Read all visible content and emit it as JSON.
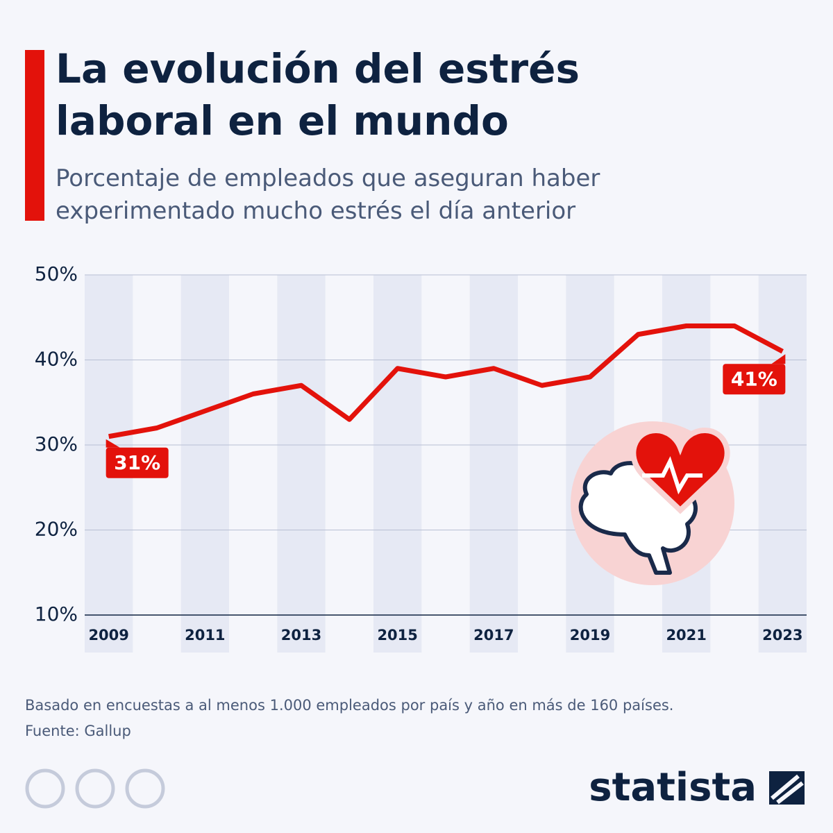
{
  "chart_data": {
    "type": "line",
    "title": "La evolución del estrés laboral en el mundo",
    "subtitle": "Porcentaje de empleados que aseguran haber experimentado mucho estrés el día anterior",
    "categories": [
      "2009",
      null,
      "2011",
      null,
      "2013",
      null,
      "2015",
      null,
      "2017",
      null,
      "2019",
      null,
      "2021",
      null,
      "2023"
    ],
    "values": [
      31,
      32,
      34,
      36,
      37,
      33,
      39,
      38,
      39,
      37,
      38,
      43,
      44,
      44,
      41
    ],
    "value_labels": [
      "31%",
      null,
      null,
      null,
      null,
      null,
      null,
      null,
      null,
      null,
      null,
      null,
      null,
      null,
      "41%"
    ],
    "color": "#e3120b",
    "ylim": [
      10,
      50
    ],
    "yticks": [
      {
        "value": 10,
        "label": "10%"
      },
      {
        "value": 20,
        "label": "20%"
      },
      {
        "value": 30,
        "label": "30%"
      },
      {
        "value": 40,
        "label": "40%"
      },
      {
        "value": 50,
        "label": "50%"
      }
    ],
    "grid": true,
    "footnote": "Basado en encuestas a al menos 1.000 empleados por país y año en más de 160 países.",
    "source": "Fuente: Gallup",
    "brand": "statista"
  }
}
